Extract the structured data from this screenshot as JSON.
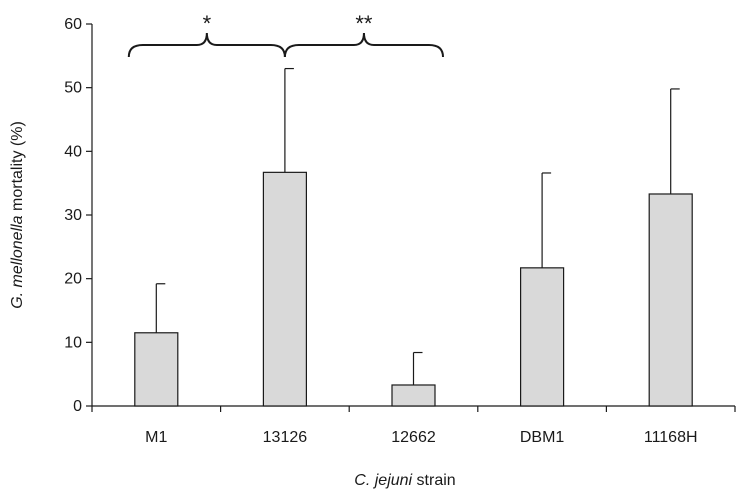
{
  "chart_data": {
    "type": "bar",
    "categories": [
      "M1",
      "13126",
      "12662",
      "DBM1",
      "11168H"
    ],
    "values": [
      11.5,
      36.7,
      3.3,
      21.7,
      33.3
    ],
    "error_upper": [
      19.2,
      53.0,
      8.4,
      36.6,
      49.8
    ],
    "ylim": [
      0,
      60
    ],
    "yticks": [
      0,
      10,
      20,
      30,
      40,
      50,
      60
    ],
    "xlabel": {
      "italic": "C. jejuni",
      "rest": " strain"
    },
    "ylabel": {
      "italic": "G. mellonella",
      "rest": " mortality (%)"
    },
    "grid": false,
    "colors": {
      "bar_fill": "#d9d9d9",
      "line": "#1a1a1a"
    },
    "annotations": [
      {
        "label": "*",
        "from": "M1",
        "to": "13126"
      },
      {
        "label": "**",
        "from": "13126",
        "to": "12662"
      }
    ]
  }
}
